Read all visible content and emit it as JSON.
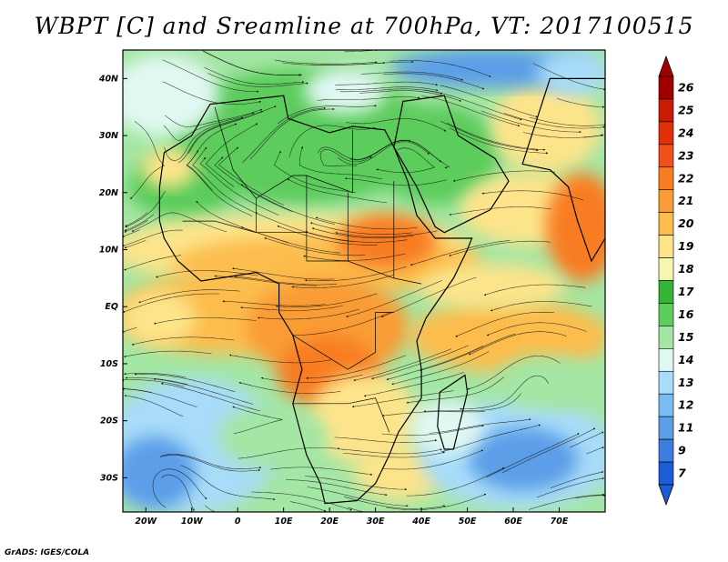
{
  "title": "WBPT [C] and Sreamline at 700hPa, VT: 2017100515",
  "credit": "GrADS: IGES/COLA",
  "map": {
    "lon_labels": [
      "20W",
      "10W",
      "0",
      "10E",
      "20E",
      "30E",
      "40E",
      "50E",
      "60E",
      "70E"
    ],
    "lat_labels": [
      "40N",
      "30N",
      "20N",
      "10N",
      "EQ",
      "10S",
      "20S",
      "30S"
    ]
  },
  "colorbar": {
    "levels": [
      "26",
      "25",
      "24",
      "23",
      "22",
      "21",
      "20",
      "19",
      "18",
      "17",
      "16",
      "15",
      "14",
      "13",
      "12",
      "11",
      "9",
      "7"
    ],
    "colors": {
      "26": "#a00000",
      "25": "#c81a04",
      "24": "#e0310a",
      "23": "#f0501a",
      "22": "#f87d22",
      "21": "#fa9c34",
      "20": "#fcbd4e",
      "19": "#fde48a",
      "18": "#f6f6b0",
      "17": "#34b434",
      "16": "#5ccc5c",
      "15": "#a4e6a4",
      "14": "#e0f8f2",
      "13": "#a8dcf8",
      "12": "#78bcf2",
      "11": "#5c9ee8",
      "9": "#3c7ede",
      "7": "#1c5cd6"
    }
  },
  "field_colors": {
    "cold": "#5c9ee8",
    "cool": "#a8dcf8",
    "pale": "#e0f8f2",
    "lightgreen": "#a4e6a4",
    "green": "#5ccc5c",
    "darkgreen": "#34b434",
    "yellow": "#fde48a",
    "lightorange": "#fcbd4e",
    "orange": "#fa9c34",
    "darkorange": "#f87d22",
    "red": "#e0310a"
  }
}
